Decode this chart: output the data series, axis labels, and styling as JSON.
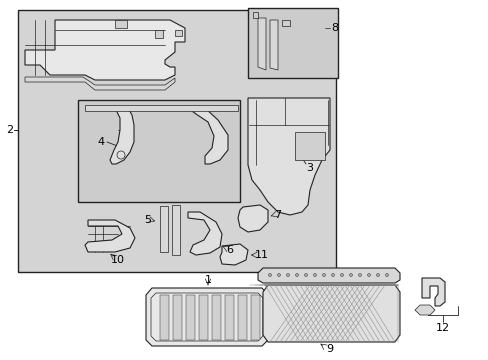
{
  "background_color": "#ffffff",
  "main_box_bg": "#d4d4d4",
  "sub_box_bg": "#d4d4d4",
  "line_color": "#222222",
  "label_color": "#000000",
  "figsize": [
    4.89,
    3.6
  ],
  "dpi": 100
}
